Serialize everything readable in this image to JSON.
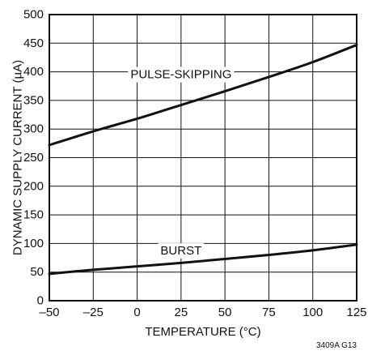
{
  "chart_data": {
    "type": "line",
    "title": "",
    "xlabel": "TEMPERATURE (°C)",
    "ylabel": "DYNAMIC SUPPLY CURRENT (µA)",
    "xlim": [
      -50,
      125
    ],
    "ylim": [
      0,
      500
    ],
    "x_ticks": [
      -50,
      -25,
      0,
      25,
      50,
      75,
      100,
      125
    ],
    "x_tick_labels": [
      "–50",
      "–25",
      "0",
      "25",
      "50",
      "75",
      "100",
      "125"
    ],
    "y_ticks": [
      0,
      50,
      100,
      150,
      200,
      250,
      300,
      350,
      400,
      450,
      500
    ],
    "y_tick_labels": [
      "0",
      "50",
      "100",
      "150",
      "200",
      "250",
      "300",
      "350",
      "400",
      "450",
      "500"
    ],
    "grid": true,
    "legend": "none",
    "series": [
      {
        "name": "PULSE-SKIPPING",
        "x": [
          -50,
          -25,
          0,
          25,
          50,
          75,
          100,
          125
        ],
        "y": [
          272,
          296,
          318,
          342,
          366,
          391,
          417,
          447
        ],
        "label_at": {
          "x": 25,
          "y": 395
        }
      },
      {
        "name": "BURST",
        "x": [
          -50,
          -25,
          0,
          25,
          50,
          75,
          100,
          125
        ],
        "y": [
          47,
          54,
          60,
          66,
          73,
          80,
          88,
          98
        ],
        "label_at": {
          "x": 25,
          "y": 87
        }
      }
    ],
    "annotations": [
      {
        "text": "3409A G13"
      }
    ]
  },
  "colors": {
    "line": "#111111",
    "grid": "#111111",
    "background": "#ffffff"
  }
}
